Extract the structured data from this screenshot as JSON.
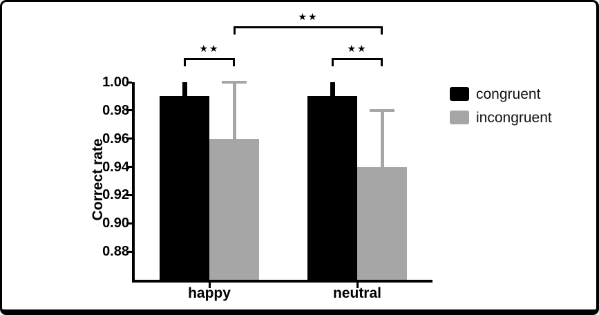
{
  "figure": {
    "background": "#ffffff",
    "frame_color": "#000000"
  },
  "chart_data": {
    "type": "bar",
    "title": "",
    "xlabel": "",
    "ylabel": "Correct rate",
    "categories": [
      "happy",
      "neutral"
    ],
    "series": [
      {
        "name": "congruent",
        "color": "#000000",
        "values": [
          0.99,
          0.99
        ],
        "error_upper": [
          1.0,
          1.0
        ]
      },
      {
        "name": "incongruent",
        "color": "#a6a6a6",
        "values": [
          0.96,
          0.94
        ],
        "error_upper": [
          1.0,
          0.98
        ]
      }
    ],
    "error_bars": "upper-only",
    "ylim": [
      0.86,
      1.0
    ],
    "ytick_values": [
      1.0,
      0.98,
      0.96,
      0.94,
      0.92,
      0.9,
      0.88
    ],
    "ytick_labels": [
      "1.00",
      "0.98",
      "0.96",
      "0.94",
      "0.92",
      "0.90",
      "0.88"
    ],
    "grid": false,
    "legend_position": "right",
    "significance_marks": [
      {
        "label": "★★",
        "a": {
          "cat": 0,
          "series": 0
        },
        "b": {
          "cat": 0,
          "series": 1
        },
        "tier": 0
      },
      {
        "label": "★★",
        "a": {
          "cat": 1,
          "series": 0
        },
        "b": {
          "cat": 1,
          "series": 1
        },
        "tier": 0
      },
      {
        "label": "★★",
        "a": {
          "cat": 0,
          "series": 1
        },
        "b": {
          "cat": 1,
          "series": 1
        },
        "tier": 1
      }
    ]
  }
}
